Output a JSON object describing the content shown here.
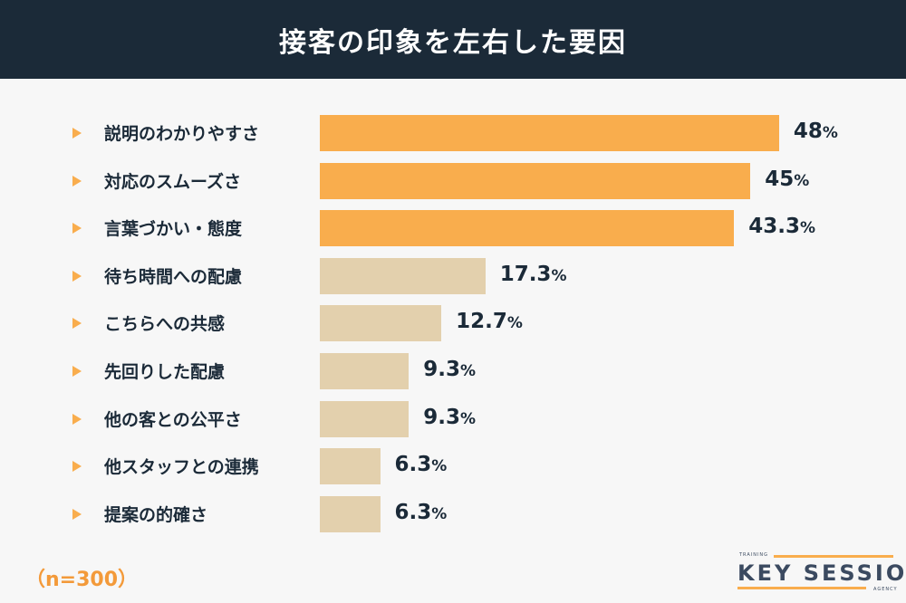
{
  "title": "接客の印象を左右した要因",
  "chart_data": {
    "type": "bar",
    "orientation": "horizontal",
    "title": "接客の印象を左右した要因",
    "categories": [
      "説明のわかりやすさ",
      "対応のスムーズさ",
      "言葉づかい・態度",
      "待ち時間への配慮",
      "こちらへの共感",
      "先回りした配慮",
      "他の客との公平さ",
      "他スタッフとの連携",
      "提案の的確さ"
    ],
    "values": [
      48,
      45,
      43.3,
      17.3,
      12.7,
      9.3,
      9.3,
      6.3,
      6.3
    ],
    "value_labels": [
      "48",
      "45",
      "43.3",
      "17.3",
      "12.7",
      "9.3",
      "9.3",
      "6.3",
      "6.3"
    ],
    "unit": "%",
    "highlight_colors": {
      "top": "#f9ad4d",
      "rest": "#e3d0ad"
    },
    "highlight_count": 3,
    "grid": false
  },
  "sample_size": "（n=300）",
  "logo": {
    "small_top": "TRAINING",
    "main": "KEY SESSION",
    "small_bottom": "AGENCY"
  }
}
